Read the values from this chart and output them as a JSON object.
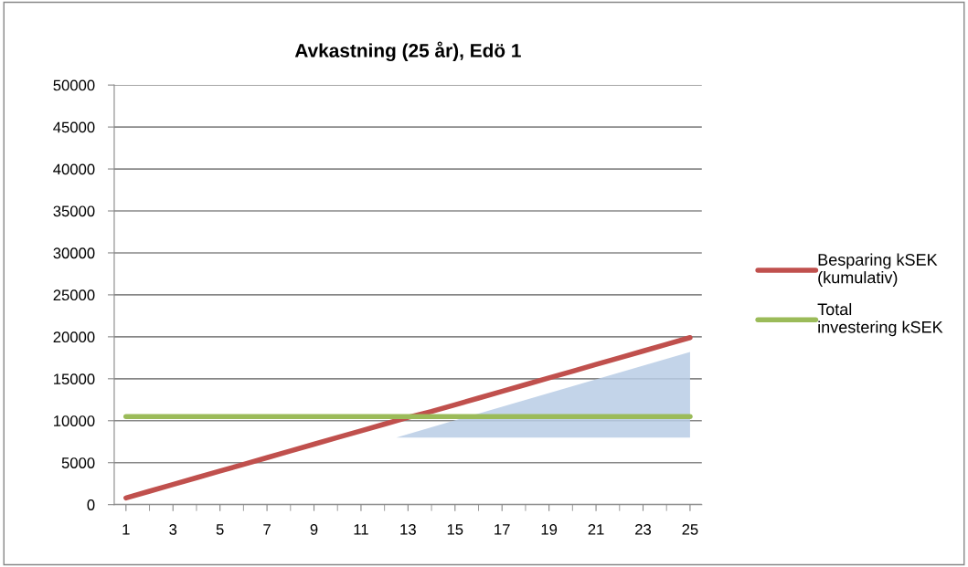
{
  "chart_data": {
    "type": "line",
    "title": "Avkastning (25 år), Edö 1",
    "categories": [
      "1",
      null,
      "3",
      null,
      "5",
      null,
      "7",
      null,
      "9",
      null,
      "11",
      null,
      "13",
      null,
      "15",
      null,
      "17",
      null,
      "19",
      null,
      "21",
      null,
      "23",
      null,
      "25"
    ],
    "series": [
      {
        "name": "Besparing kSEK (kumulativ)",
        "color": "#c0504d",
        "values": [
          800,
          1600,
          2400,
          3200,
          4000,
          4800,
          5600,
          6400,
          7200,
          8000,
          8800,
          9600,
          10400,
          11100,
          11900,
          12700,
          13500,
          14300,
          15100,
          15900,
          16700,
          17500,
          18300,
          19100,
          19900
        ]
      },
      {
        "name": "Total investering kSEK",
        "color": "#9bbb59",
        "values": [
          10500,
          10500,
          10500,
          10500,
          10500,
          10500,
          10500,
          10500,
          10500,
          10500,
          10500,
          10500,
          10500,
          10500,
          10500,
          10500,
          10500,
          10500,
          10500,
          10500,
          10500,
          10500,
          10500,
          10500,
          10500
        ]
      }
    ],
    "ylim": [
      0,
      50000
    ],
    "yticks": [
      0,
      5000,
      10000,
      15000,
      20000,
      25000,
      30000,
      35000,
      40000,
      45000,
      50000
    ],
    "grid": "y",
    "legend": "right",
    "marker": "none",
    "line_style": "solid"
  }
}
